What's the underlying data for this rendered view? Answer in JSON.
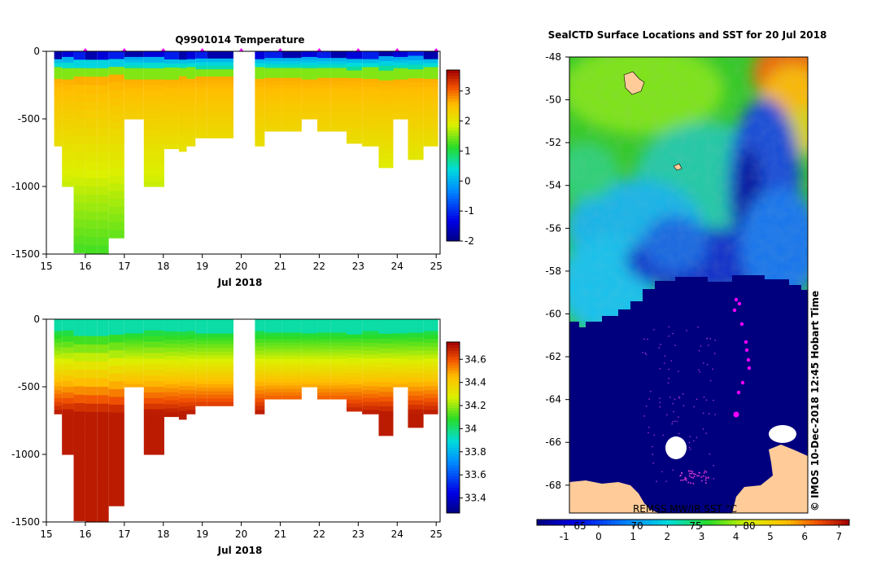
{
  "colors": {
    "marker": "#ff00ff",
    "land": "#ffcc99",
    "ocean_dark": "#00007f"
  },
  "chart_data": [
    {
      "type": "heatmap",
      "title": "Q9901014  Temperature",
      "variable": "temperature",
      "x_ticks": [
        "15",
        "16",
        "17",
        "18",
        "19",
        "20",
        "21",
        "22",
        "23",
        "24",
        "25"
      ],
      "x_label": "Jul 2018",
      "y_ticks": [
        "0",
        "-500",
        "-1000",
        "-1500"
      ],
      "ylim": [
        -1500,
        0
      ],
      "xlim": [
        15,
        25.1
      ],
      "colorbar_ticks": [
        "-2",
        "-1",
        "0",
        "1",
        "2",
        "3"
      ],
      "colorbar_range": [
        -2,
        3.7
      ],
      "profile_dates": [
        15.25,
        15.55,
        15.85,
        16.15,
        16.45,
        16.75,
        17.25,
        17.75,
        18.3,
        18.5,
        18.7,
        18.95,
        19.3,
        20.4,
        20.8,
        21.3,
        21.8,
        22.1,
        22.5,
        22.9,
        23.3,
        23.75,
        24.05,
        24.5,
        24.85
      ],
      "profile_depths": [
        -700,
        -1000,
        -1490,
        -1500,
        -1500,
        -1380,
        -500,
        -1000,
        -720,
        -740,
        -700,
        -640,
        -640,
        -700,
        -590,
        -590,
        -500,
        -590,
        -590,
        -680,
        -700,
        -860,
        -500,
        -800,
        -700
      ],
      "station_markers": [
        16,
        17,
        18,
        19,
        20,
        21,
        22,
        23,
        24,
        25
      ]
    },
    {
      "type": "heatmap",
      "title": "",
      "variable": "salinity",
      "x_ticks": [
        "15",
        "16",
        "17",
        "18",
        "19",
        "20",
        "21",
        "22",
        "23",
        "24",
        "25"
      ],
      "x_label": "Jul 2018",
      "y_ticks": [
        "0",
        "-500",
        "-1000",
        "-1500"
      ],
      "ylim": [
        -1500,
        0
      ],
      "xlim": [
        15,
        25.1
      ],
      "colorbar_ticks": [
        "33.4",
        "33.6",
        "33.8",
        "34",
        "34.2",
        "34.4",
        "34.6"
      ],
      "colorbar_range": [
        33.27,
        34.75
      ]
    },
    {
      "type": "heatmap",
      "title": "SealCTD Surface Locations and SST for 20 Jul 2018",
      "y_ticks": [
        "-48",
        "-50",
        "-52",
        "-54",
        "-56",
        "-58",
        "-60",
        "-62",
        "-64",
        "-66",
        "-68"
      ],
      "ylim": [
        -69.3,
        -48
      ],
      "colorbar_ticks": [
        "-1",
        "0",
        "1",
        "2",
        "3",
        "4",
        "5",
        "6",
        "7"
      ],
      "colorbar_range": [
        -1.8,
        7.3
      ],
      "lon_ticks": [
        "65",
        "70",
        "75",
        "80"
      ],
      "source_label": "REMSS MW/IR SST °C",
      "credit": "© IMOS 10-Dec-2018 12:45 Hobart Time"
    }
  ]
}
